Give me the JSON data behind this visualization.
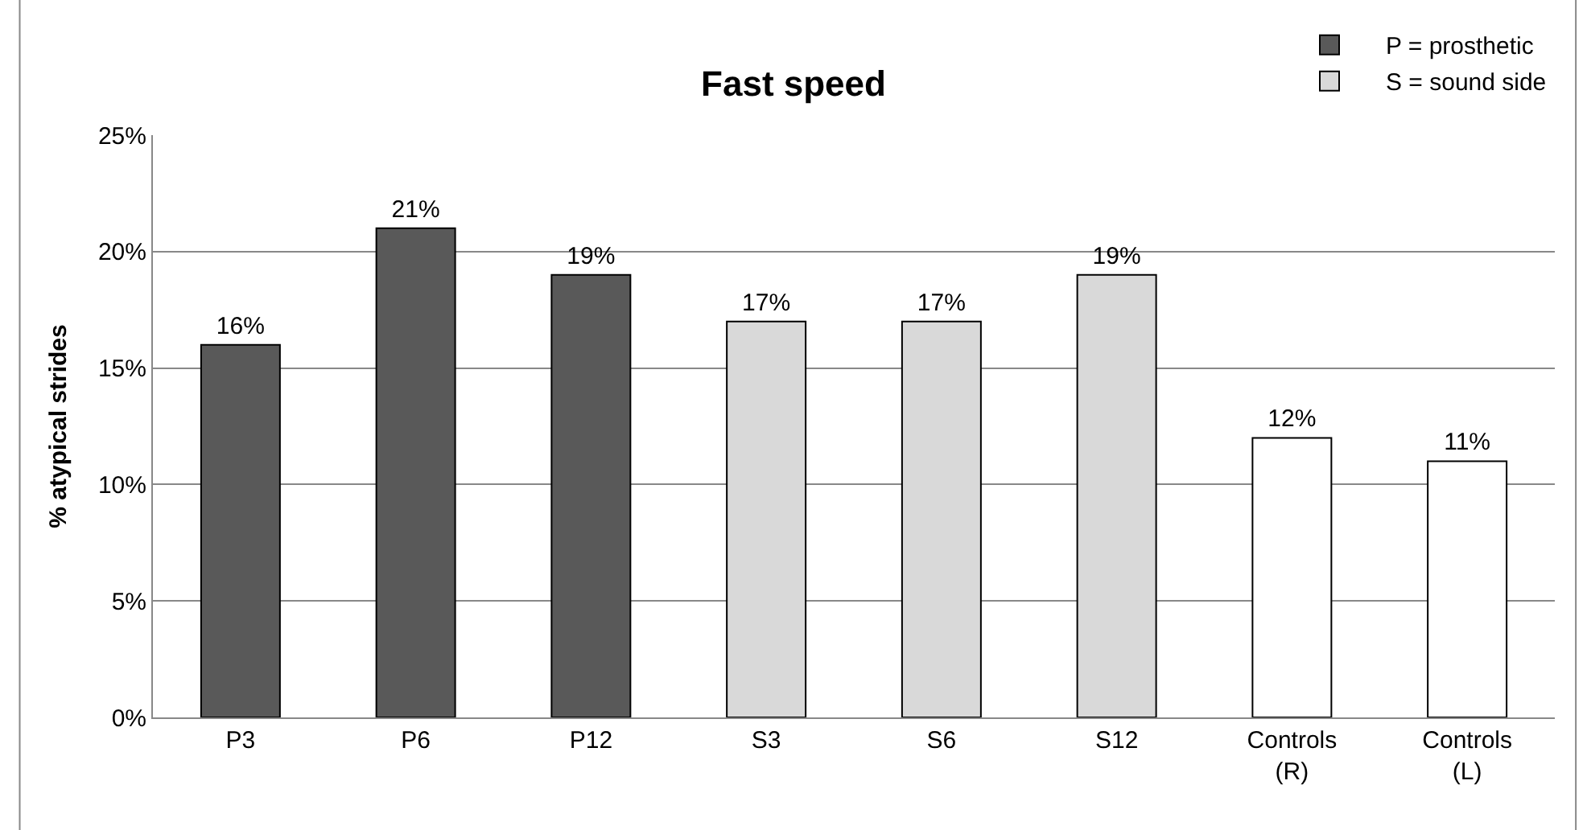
{
  "chart_data": {
    "type": "bar",
    "title": "Fast speed",
    "ylabel": "% atypical strides",
    "categories": [
      "P3",
      "P6",
      "P12",
      "S3",
      "S6",
      "S12",
      "Controls\n(R)",
      "Controls\n(L)"
    ],
    "series": [
      {
        "name": "P = prosthetic",
        "color": "#595959",
        "values": [
          16,
          21,
          19,
          null,
          null,
          null,
          null,
          null
        ],
        "value_labels": [
          "16%",
          "21%",
          "19%",
          null,
          null,
          null,
          null,
          null
        ]
      },
      {
        "name": "S = sound side",
        "color": "#d9d9d9",
        "values": [
          null,
          null,
          null,
          17,
          17,
          19,
          null,
          null
        ],
        "value_labels": [
          null,
          null,
          null,
          "17%",
          "17%",
          "19%",
          null,
          null
        ]
      },
      {
        "color": "#ffffff",
        "values": [
          null,
          null,
          null,
          null,
          null,
          null,
          12,
          11
        ],
        "value_labels": [
          null,
          null,
          null,
          null,
          null,
          null,
          "12%",
          "11%"
        ]
      }
    ],
    "ylim": [
      0,
      25
    ],
    "yticks": [
      {
        "value": 0,
        "label": "0%"
      },
      {
        "value": 5,
        "label": "5%"
      },
      {
        "value": 10,
        "label": "10%"
      },
      {
        "value": 15,
        "label": "15%"
      },
      {
        "value": 20,
        "label": "20%"
      },
      {
        "value": 25,
        "label": "25%"
      }
    ],
    "grid": "y",
    "legend": "top right"
  }
}
